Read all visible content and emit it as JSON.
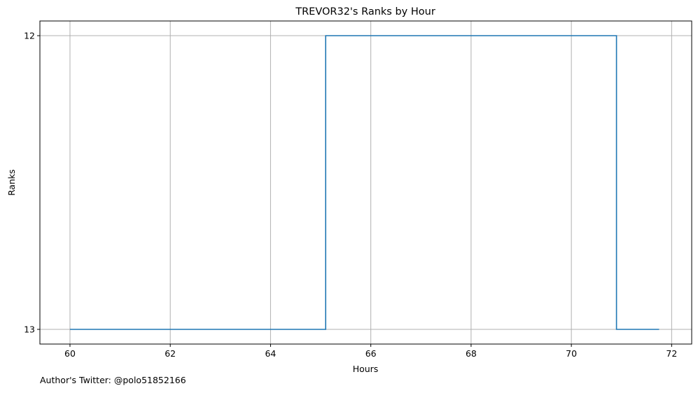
{
  "chart_data": {
    "type": "line",
    "title": "TREVOR32's Ranks by Hour",
    "xlabel": "Hours",
    "ylabel": "Ranks",
    "step": "post",
    "xlim": [
      59.4,
      72.4
    ],
    "ylim": [
      13.05,
      11.95
    ],
    "x_ticks": [
      60,
      62,
      64,
      66,
      68,
      70,
      72
    ],
    "y_ticks": [
      12,
      13
    ],
    "grid": true,
    "colors": {
      "line": "#1f77b4",
      "grid": "#b0b0b0"
    },
    "series": [
      {
        "x": [
          60,
          65.1,
          70.9,
          71.75
        ],
        "y": [
          13,
          12,
          13,
          13
        ]
      }
    ]
  },
  "footer": {
    "note": "Author's Twitter: @polo51852166"
  }
}
